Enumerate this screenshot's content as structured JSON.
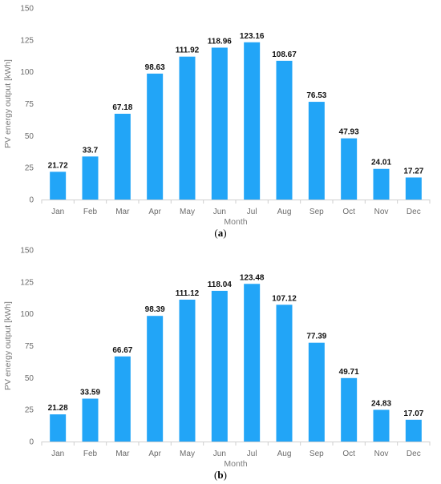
{
  "chart_data": [
    {
      "type": "bar",
      "panel_label": "a",
      "categories": [
        "Jan",
        "Feb",
        "Mar",
        "Apr",
        "May",
        "Jun",
        "Jul",
        "Aug",
        "Sep",
        "Oct",
        "Nov",
        "Dec"
      ],
      "values": [
        21.72,
        33.7,
        67.18,
        98.63,
        111.92,
        118.96,
        123.16,
        108.67,
        76.53,
        47.93,
        24.01,
        17.27
      ],
      "value_labels": [
        "21.72",
        "33.7",
        "67.18",
        "98.63",
        "111.92",
        "118.96",
        "123.16",
        "108.67",
        "76.53",
        "47.93",
        "24.01",
        "17.27"
      ],
      "xlabel": "Month",
      "ylabel": "PV energy output [kWh]",
      "ylim": [
        0,
        150
      ],
      "yticks": [
        "0",
        "25",
        "50",
        "75",
        "100",
        "125",
        "150"
      ],
      "grid": false,
      "bar_color": "#22a5f7"
    },
    {
      "type": "bar",
      "panel_label": "b",
      "categories": [
        "Jan",
        "Feb",
        "Mar",
        "Apr",
        "May",
        "Jun",
        "Jul",
        "Aug",
        "Sep",
        "Oct",
        "Nov",
        "Dec"
      ],
      "values": [
        21.28,
        33.59,
        66.67,
        98.39,
        111.12,
        118.04,
        123.48,
        107.12,
        77.39,
        49.71,
        24.83,
        17.07
      ],
      "value_labels": [
        "21.28",
        "33.59",
        "66.67",
        "98.39",
        "111.12",
        "118.04",
        "123.48",
        "107.12",
        "77.39",
        "49.71",
        "24.83",
        "17.07"
      ],
      "xlabel": "Month",
      "ylabel": "PV energy output [kWh]",
      "ylim": [
        0,
        150
      ],
      "yticks": [
        "0",
        "25",
        "50",
        "75",
        "100",
        "125",
        "150"
      ],
      "grid": false,
      "bar_color": "#22a5f7"
    }
  ]
}
